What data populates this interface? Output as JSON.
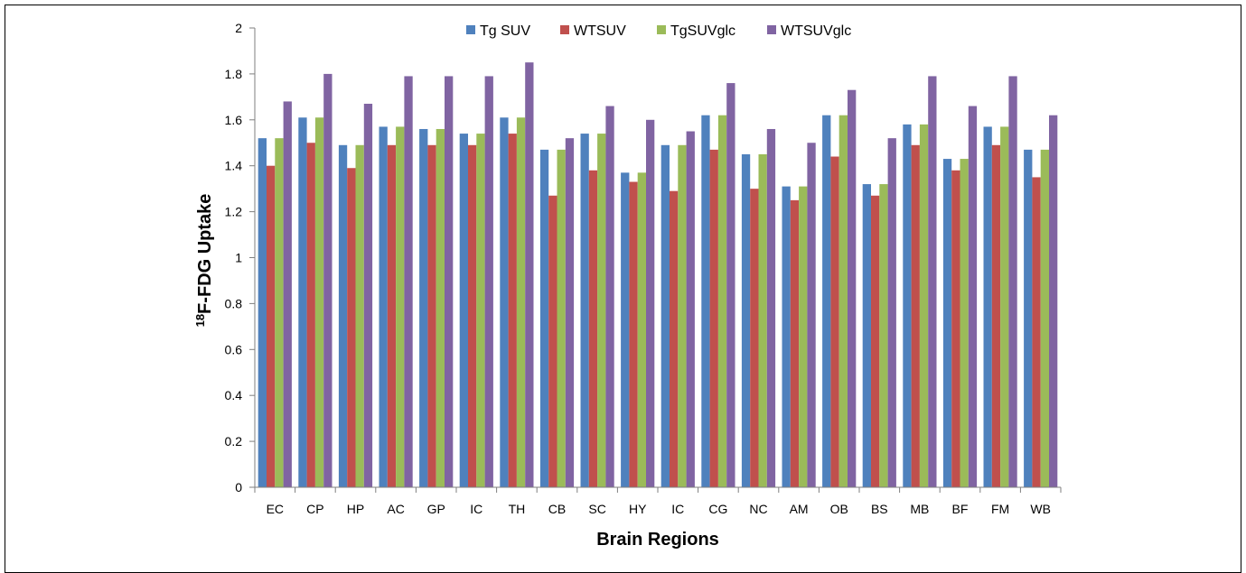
{
  "chart_data": {
    "type": "bar",
    "title": "",
    "xlabel": "Brain Regions",
    "ylabel_sup": "18",
    "ylabel_main": "F-FDG Uptake",
    "ylim": [
      0,
      2
    ],
    "yticks": [
      "0",
      "0.2",
      "0.4",
      "0.6",
      "0.8",
      "1",
      "1.2",
      "1.4",
      "1.6",
      "1.8",
      "2"
    ],
    "legend_position": "top-center",
    "grid": false,
    "categories": [
      "EC",
      "CP",
      "HP",
      "AC",
      "GP",
      "IC",
      "TH",
      "CB",
      "SC",
      "HY",
      "IC",
      "CG",
      "NC",
      "AM",
      "OB",
      "BS",
      "MB",
      "BF",
      "FM",
      "WB"
    ],
    "series": [
      {
        "name": "Tg SUV",
        "color": "#4F81BD",
        "values": [
          1.52,
          1.61,
          1.49,
          1.57,
          1.56,
          1.54,
          1.61,
          1.47,
          1.54,
          1.37,
          1.49,
          1.62,
          1.45,
          1.31,
          1.62,
          1.32,
          1.58,
          1.43,
          1.57,
          1.47
        ]
      },
      {
        "name": "WTSUV",
        "color": "#C0504D",
        "values": [
          1.4,
          1.5,
          1.39,
          1.49,
          1.49,
          1.49,
          1.54,
          1.27,
          1.38,
          1.33,
          1.29,
          1.47,
          1.3,
          1.25,
          1.44,
          1.27,
          1.49,
          1.38,
          1.49,
          1.35
        ]
      },
      {
        "name": "TgSUVglc",
        "color": "#9BBB59",
        "values": [
          1.52,
          1.61,
          1.49,
          1.57,
          1.56,
          1.54,
          1.61,
          1.47,
          1.54,
          1.37,
          1.49,
          1.62,
          1.45,
          1.31,
          1.62,
          1.32,
          1.58,
          1.43,
          1.57,
          1.47
        ]
      },
      {
        "name": "WTSUVglc",
        "color": "#8064A2",
        "values": [
          1.68,
          1.8,
          1.67,
          1.79,
          1.79,
          1.79,
          1.85,
          1.52,
          1.66,
          1.6,
          1.55,
          1.76,
          1.56,
          1.5,
          1.73,
          1.52,
          1.79,
          1.66,
          1.79,
          1.62
        ]
      }
    ]
  }
}
